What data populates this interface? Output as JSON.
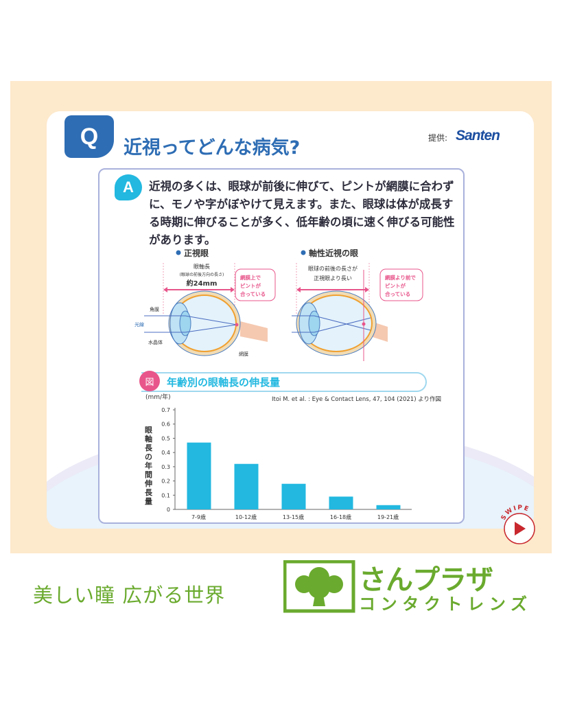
{
  "question": {
    "badge": "Q",
    "title": "近視ってどんな病気?"
  },
  "provider": {
    "label": "提供:",
    "brand": "Santen"
  },
  "answer": {
    "badge": "A",
    "text": "近視の多くは、眼球が前後に伸びて、ピントが網膜に合わずに、モノや字がぼやけて見えます。また、眼球は体が成長する時期に伸びることが多く、低年齢の頃に速く伸びる可能性があります。"
  },
  "diagram": {
    "normal": {
      "title": "正視眼",
      "axis_label": "眼軸長",
      "axis_sub": "(眼球の前後方向の長さ)",
      "axis_value": "約24mm",
      "callout": [
        "網膜上で",
        "ピントが",
        "合っている"
      ],
      "parts": {
        "cornea": "角膜",
        "light": "光線",
        "lens": "水晶体",
        "retina": "網膜"
      }
    },
    "myopia": {
      "title": "軸性近視の眼",
      "axis_label": [
        "眼球の前後の長さが",
        "正視眼より長い"
      ],
      "callout": [
        "網膜より前で",
        "ピントが",
        "合っている"
      ]
    }
  },
  "chart_data": {
    "type": "bar",
    "title": "年齢別の眼軸長の伸長量",
    "badge": "図",
    "source": "Itoi M. et al. : Eye & Contact Lens, 47, 104 (2021) より作図",
    "unit": "(mm/年)",
    "ylabel": "眼軸長の年間伸長量",
    "categories": [
      "7-9歳",
      "10-12歳",
      "13-15歳",
      "16-18歳",
      "19-21歳"
    ],
    "values": [
      0.47,
      0.32,
      0.18,
      0.09,
      0.03
    ],
    "ylim": [
      0,
      0.7
    ],
    "yticks": [
      "0",
      "0.1",
      "0.2",
      "0.3",
      "0.4",
      "0.5",
      "0.6",
      "0.7"
    ],
    "color": "#22b8e0",
    "grid": false
  },
  "swipe": {
    "label": "SWIPE"
  },
  "footer": {
    "slogan": "美しい瞳 広がる世界",
    "logo_line1": "さんプラザ",
    "logo_line2": "コンタクトレンズ"
  },
  "colors": {
    "brand_blue": "#2e6db4",
    "accent_cyan": "#22b8e0",
    "pink": "#e8558a",
    "green": "#6aaa2e",
    "peach": "#fde9cc"
  }
}
